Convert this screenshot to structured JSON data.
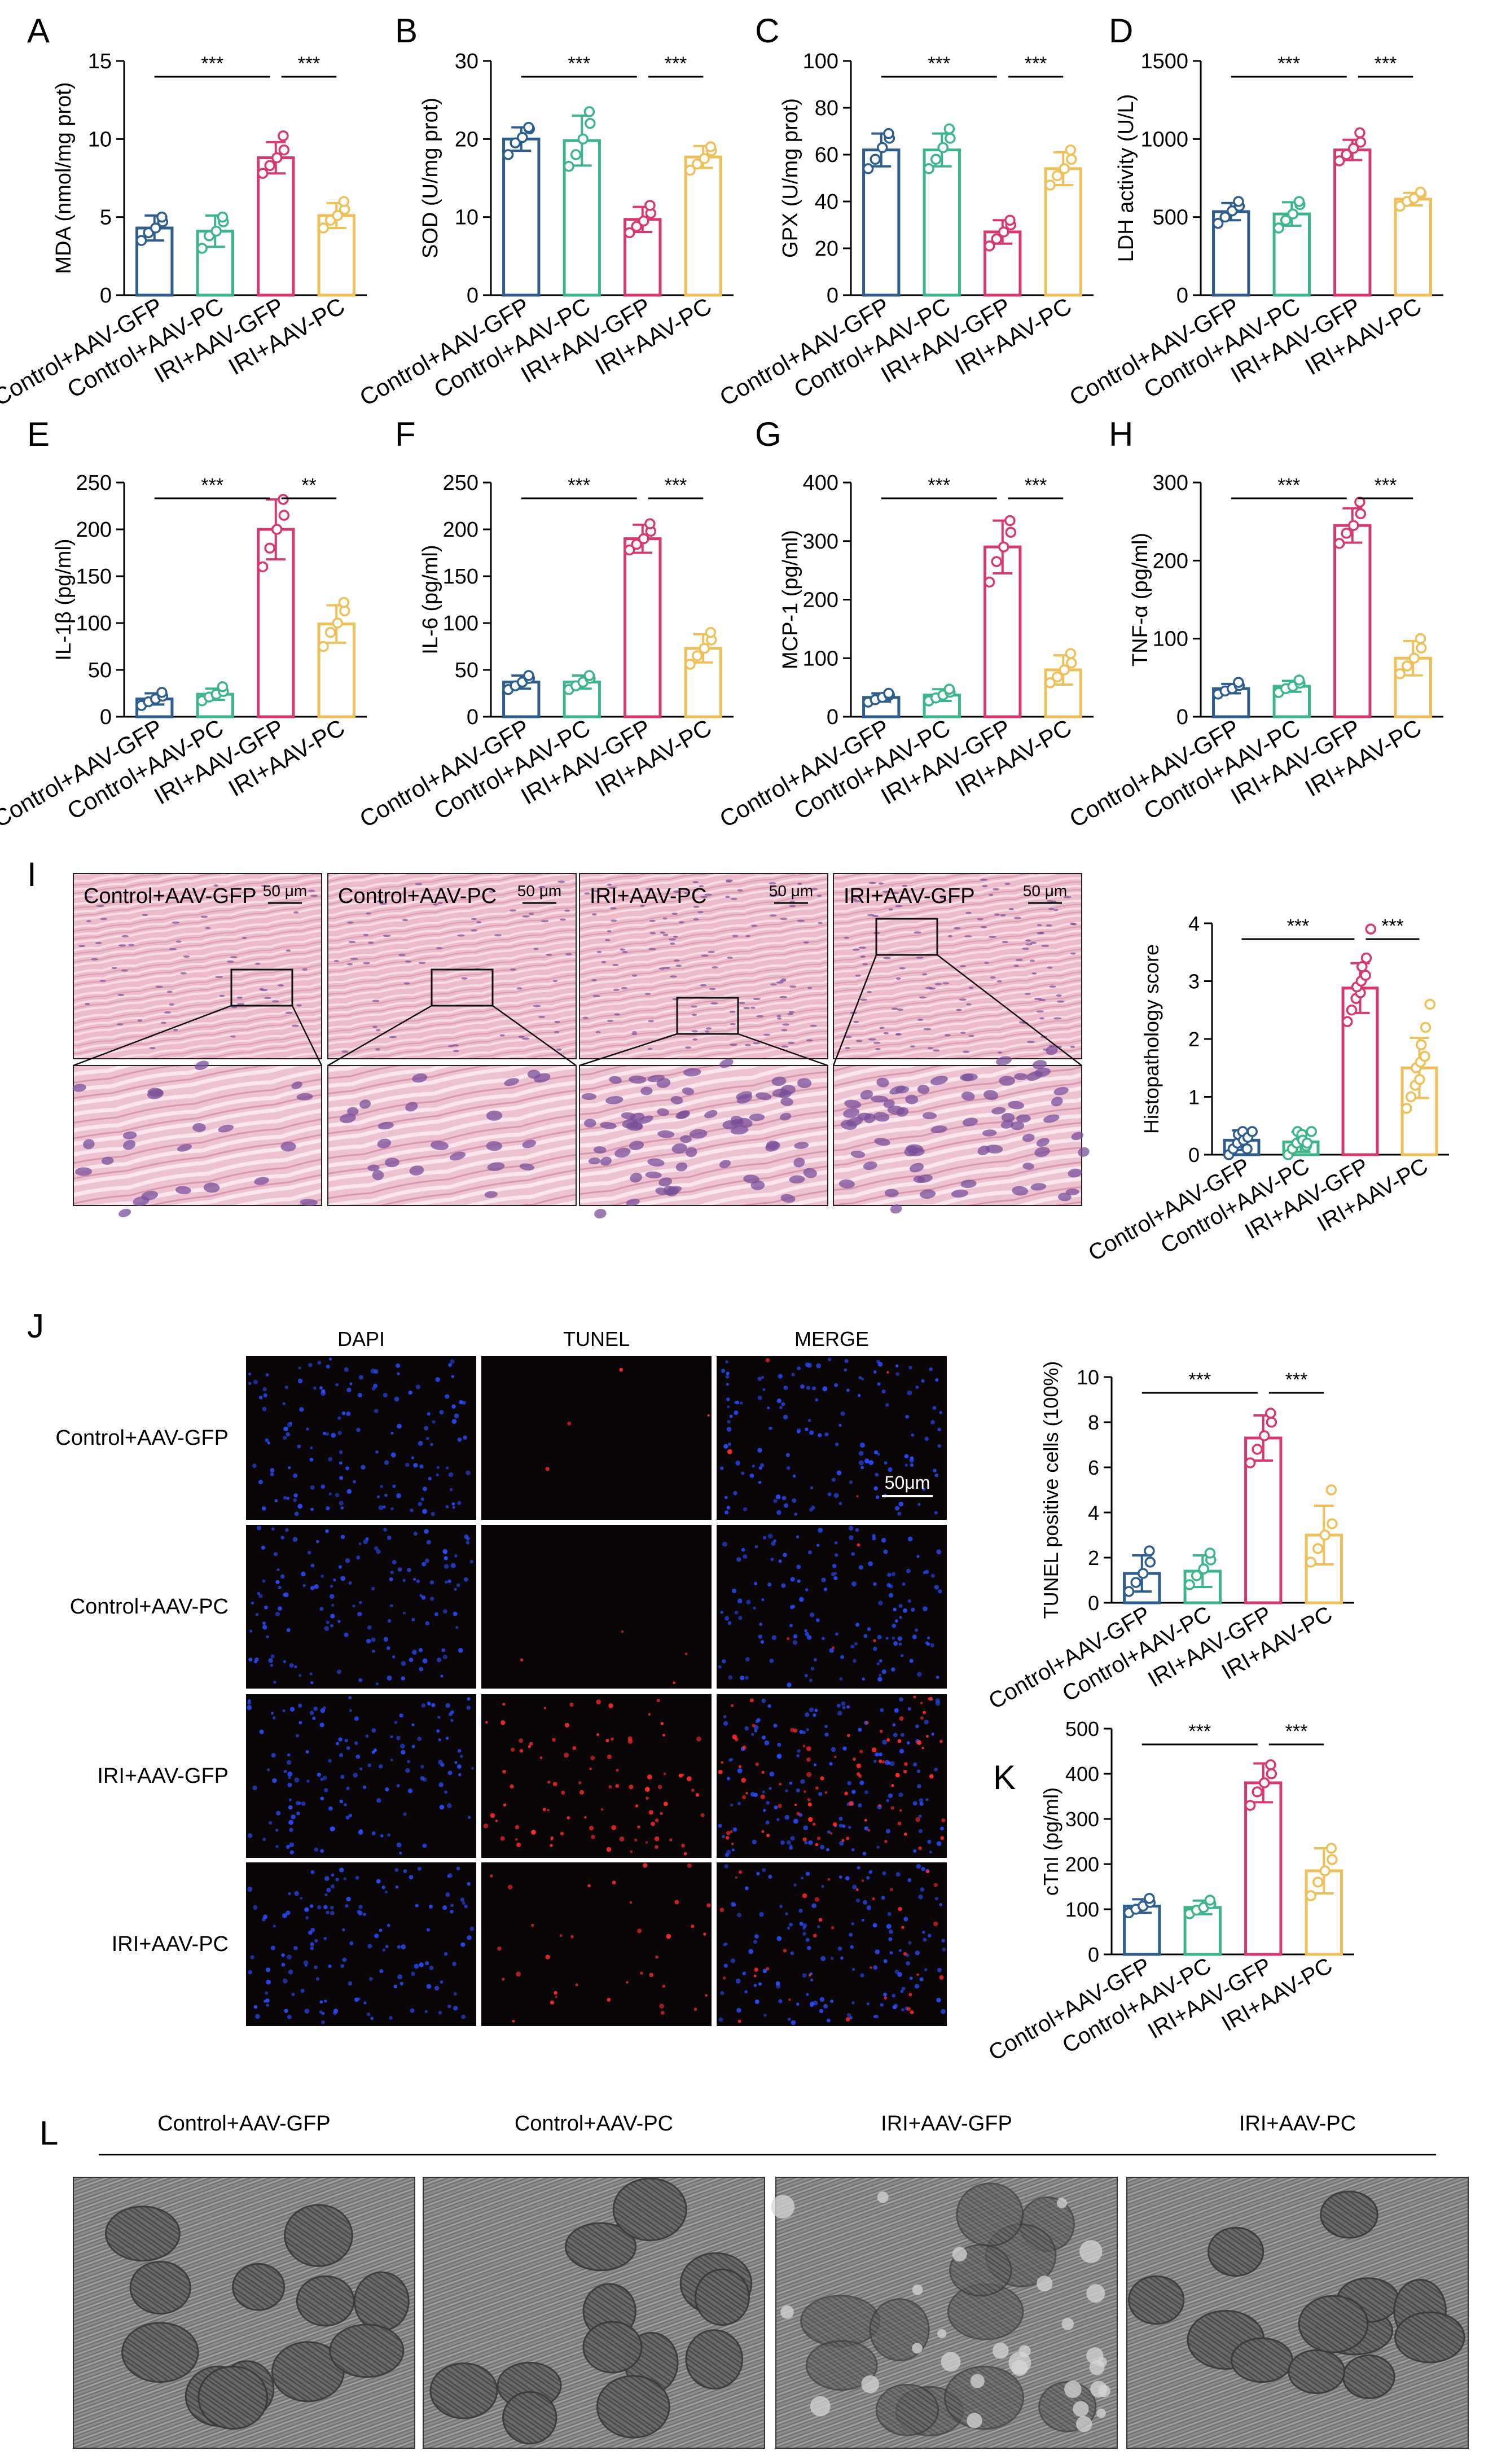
{
  "colors": {
    "Control+AAV-GFP": "#2e5e8e",
    "Control+AAV-PC": "#3cb589",
    "IRI+AAV-GFP": "#d7396d",
    "IRI+AAV-PC": "#efc05a",
    "he_tissue": "#eab8c8",
    "he_nuclei": "#7a4f9a",
    "fluor_bg": "#0a0608",
    "dapi": "#2a4cff",
    "tunel": "#ff2a2a",
    "em_tissue": "#8a8a8a"
  },
  "groups": [
    "Control+AAV-GFP",
    "Control+AAV-PC",
    "IRI+AAV-GFP",
    "IRI+AAV-PC"
  ],
  "chart_data": [
    {
      "id": "A",
      "type": "bar",
      "ylabel": "MDA (nmol/mg prot)",
      "ylim": [
        0,
        15
      ],
      "yticks": [
        0,
        5,
        10,
        15
      ],
      "categories": [
        "Control+AAV-GFP",
        "Control+AAV-PC",
        "IRI+AAV-GFP",
        "IRI+AAV-PC"
      ],
      "values": [
        4.3,
        4.1,
        8.8,
        5.1
      ],
      "errors": [
        0.8,
        1.0,
        1.0,
        0.8
      ],
      "points": [
        [
          3.5,
          4.0,
          4.3,
          4.7,
          5.0
        ],
        [
          3.0,
          3.8,
          4.1,
          4.7,
          5.0
        ],
        [
          7.8,
          8.3,
          8.8,
          9.3,
          10.2
        ],
        [
          4.3,
          4.8,
          5.1,
          5.5,
          6.0
        ]
      ],
      "significance": [
        {
          "from": 0,
          "to": 2,
          "label": "***"
        },
        {
          "from": 2,
          "to": 3,
          "label": "***"
        }
      ]
    },
    {
      "id": "B",
      "type": "bar",
      "ylabel": "SOD (U/mg prot)",
      "ylim": [
        0,
        30
      ],
      "yticks": [
        0,
        10,
        20,
        30
      ],
      "categories": [
        "Control+AAV-GFP",
        "Control+AAV-PC",
        "IRI+AAV-GFP",
        "IRI+AAV-PC"
      ],
      "values": [
        20.0,
        19.8,
        9.7,
        17.7
      ],
      "errors": [
        1.5,
        3.2,
        1.6,
        1.4
      ],
      "points": [
        [
          18.0,
          19.5,
          20.2,
          21.3,
          21.5
        ],
        [
          16.5,
          18.0,
          20.0,
          22.0,
          23.5
        ],
        [
          8.0,
          8.8,
          9.5,
          10.5,
          11.5
        ],
        [
          16.0,
          16.8,
          17.5,
          18.5,
          19.0
        ]
      ],
      "significance": [
        {
          "from": 0,
          "to": 2,
          "label": "***"
        },
        {
          "from": 2,
          "to": 3,
          "label": "***"
        }
      ]
    },
    {
      "id": "C",
      "type": "bar",
      "ylabel": "GPX (U/mg prot)",
      "ylim": [
        0,
        100
      ],
      "yticks": [
        0,
        20,
        40,
        60,
        80,
        100
      ],
      "categories": [
        "Control+AAV-GFP",
        "Control+AAV-PC",
        "IRI+AAV-GFP",
        "IRI+AAV-PC"
      ],
      "values": [
        62,
        62,
        27,
        54
      ],
      "errors": [
        7,
        7,
        5,
        7
      ],
      "points": [
        [
          54,
          58,
          63,
          67,
          69
        ],
        [
          54,
          58,
          63,
          67,
          71
        ],
        [
          21,
          24,
          27,
          30,
          32
        ],
        [
          47,
          51,
          54,
          58,
          62
        ]
      ],
      "significance": [
        {
          "from": 0,
          "to": 2,
          "label": "***"
        },
        {
          "from": 2,
          "to": 3,
          "label": "***"
        }
      ]
    },
    {
      "id": "D",
      "type": "bar",
      "ylabel": "LDH activity (U/L)",
      "ylim": [
        0,
        1500
      ],
      "yticks": [
        0,
        500,
        1000,
        1500
      ],
      "categories": [
        "Control+AAV-GFP",
        "Control+AAV-PC",
        "IRI+AAV-GFP",
        "IRI+AAV-PC"
      ],
      "values": [
        535,
        520,
        930,
        615
      ],
      "errors": [
        55,
        75,
        65,
        40
      ],
      "points": [
        [
          460,
          500,
          540,
          570,
          600
        ],
        [
          430,
          480,
          520,
          580,
          600
        ],
        [
          860,
          900,
          940,
          980,
          1040
        ],
        [
          570,
          600,
          620,
          650,
          660
        ]
      ],
      "significance": [
        {
          "from": 0,
          "to": 2,
          "label": "***"
        },
        {
          "from": 2,
          "to": 3,
          "label": "***"
        }
      ]
    },
    {
      "id": "E",
      "type": "bar",
      "ylabel": "IL-1β (pg/ml)",
      "ylim": [
        0,
        250
      ],
      "yticks": [
        0,
        50,
        100,
        150,
        200,
        250
      ],
      "categories": [
        "Control+AAV-GFP",
        "Control+AAV-PC",
        "IRI+AAV-GFP",
        "IRI+AAV-PC"
      ],
      "values": [
        19,
        24,
        200,
        99
      ],
      "errors": [
        6,
        6,
        32,
        20
      ],
      "points": [
        [
          12,
          16,
          19,
          22,
          26
        ],
        [
          17,
          21,
          24,
          27,
          32
        ],
        [
          160,
          180,
          200,
          215,
          232
        ],
        [
          75,
          90,
          100,
          113,
          122
        ]
      ],
      "significance": [
        {
          "from": 0,
          "to": 2,
          "label": "***"
        },
        {
          "from": 2,
          "to": 3,
          "label": "**"
        }
      ]
    },
    {
      "id": "F",
      "type": "bar",
      "ylabel": "IL-6 (pg/ml)",
      "ylim": [
        0,
        250
      ],
      "yticks": [
        0,
        50,
        100,
        150,
        200,
        250
      ],
      "categories": [
        "Control+AAV-GFP",
        "Control+AAV-PC",
        "IRI+AAV-GFP",
        "IRI+AAV-PC"
      ],
      "values": [
        37,
        37,
        190,
        73
      ],
      "errors": [
        7,
        7,
        15,
        15
      ],
      "points": [
        [
          29,
          33,
          37,
          41,
          44
        ],
        [
          29,
          33,
          37,
          41,
          44
        ],
        [
          178,
          184,
          190,
          198,
          206
        ],
        [
          56,
          65,
          73,
          82,
          90
        ]
      ],
      "significance": [
        {
          "from": 0,
          "to": 2,
          "label": "***"
        },
        {
          "from": 2,
          "to": 3,
          "label": "***"
        }
      ]
    },
    {
      "id": "G",
      "type": "bar",
      "ylabel": "MCP-1 (pg/ml)",
      "ylim": [
        0,
        400
      ],
      "yticks": [
        0,
        100,
        200,
        300,
        400
      ],
      "categories": [
        "Control+AAV-GFP",
        "Control+AAV-PC",
        "IRI+AAV-GFP",
        "IRI+AAV-PC"
      ],
      "values": [
        33,
        37,
        290,
        80
      ],
      "errors": [
        7,
        10,
        45,
        25
      ],
      "points": [
        [
          25,
          29,
          33,
          37,
          40
        ],
        [
          27,
          32,
          37,
          42,
          47
        ],
        [
          230,
          265,
          290,
          315,
          335
        ],
        [
          58,
          68,
          80,
          92,
          108
        ]
      ],
      "significance": [
        {
          "from": 0,
          "to": 2,
          "label": "***"
        },
        {
          "from": 2,
          "to": 3,
          "label": "***"
        }
      ]
    },
    {
      "id": "H",
      "type": "bar",
      "ylabel": "TNF-α (pg/ml)",
      "ylim": [
        0,
        300
      ],
      "yticks": [
        0,
        100,
        200,
        300
      ],
      "categories": [
        "Control+AAV-GFP",
        "Control+AAV-PC",
        "IRI+AAV-GFP",
        "IRI+AAV-PC"
      ],
      "values": [
        36,
        39,
        245,
        75
      ],
      "errors": [
        6,
        7,
        22,
        22
      ],
      "points": [
        [
          29,
          33,
          36,
          40,
          44
        ],
        [
          31,
          36,
          39,
          43,
          47
        ],
        [
          222,
          235,
          245,
          260,
          275
        ],
        [
          55,
          65,
          75,
          88,
          100
        ]
      ],
      "significance": [
        {
          "from": 0,
          "to": 2,
          "label": "***"
        },
        {
          "from": 2,
          "to": 3,
          "label": "***"
        }
      ]
    },
    {
      "id": "I",
      "type": "bar",
      "ylabel": "Histopathology score",
      "ylim": [
        0,
        4
      ],
      "yticks": [
        0,
        1,
        2,
        3,
        4
      ],
      "categories": [
        "Control+AAV-GFP",
        "Control+AAV-PC",
        "IRI+AAV-GFP",
        "IRI+AAV-PC"
      ],
      "values": [
        0.25,
        0.22,
        2.88,
        1.5
      ],
      "errors": [
        0.17,
        0.17,
        0.43,
        0.52
      ],
      "points": [
        [
          0.0,
          0.1,
          0.2,
          0.3,
          0.35,
          0.4,
          0.1,
          0.25,
          0.3,
          0.4
        ],
        [
          0.0,
          0.1,
          0.2,
          0.3,
          0.4,
          0.35,
          0.15,
          0.25,
          0.2,
          0.4
        ],
        [
          2.3,
          2.5,
          2.7,
          2.8,
          2.9,
          3.0,
          3.1,
          3.25,
          3.4,
          3.9
        ],
        [
          0.8,
          1.0,
          1.2,
          1.3,
          1.5,
          1.6,
          1.7,
          1.9,
          2.2,
          2.6
        ]
      ],
      "significance": [
        {
          "from": 0,
          "to": 2,
          "label": "***"
        },
        {
          "from": 2,
          "to": 3,
          "label": "***"
        }
      ]
    },
    {
      "id": "J",
      "type": "bar",
      "ylabel": "TUNEL positive cells (100%)",
      "ylim": [
        0,
        10
      ],
      "yticks": [
        0,
        2,
        4,
        6,
        8,
        10
      ],
      "categories": [
        "Control+AAV-GFP",
        "Control+AAV-PC",
        "IRI+AAV-GFP",
        "IRI+AAV-PC"
      ],
      "values": [
        1.3,
        1.4,
        7.3,
        3.0
      ],
      "errors": [
        0.8,
        0.7,
        1.0,
        1.3
      ],
      "points": [
        [
          0.5,
          0.9,
          1.3,
          1.8,
          2.3
        ],
        [
          0.8,
          1.2,
          1.5,
          1.9,
          2.2
        ],
        [
          6.2,
          6.8,
          7.4,
          8.0,
          8.4
        ],
        [
          1.8,
          2.4,
          3.0,
          3.5,
          5.0
        ]
      ],
      "significance": [
        {
          "from": 0,
          "to": 2,
          "label": "***"
        },
        {
          "from": 2,
          "to": 3,
          "label": "***"
        }
      ]
    },
    {
      "id": "K",
      "type": "bar",
      "ylabel": "cTnI (pg/ml)",
      "ylim": [
        0,
        500
      ],
      "yticks": [
        0,
        100,
        200,
        300,
        400,
        500
      ],
      "categories": [
        "Control+AAV-GFP",
        "Control+AAV-PC",
        "IRI+AAV-GFP",
        "IRI+AAV-PC"
      ],
      "values": [
        107,
        104,
        380,
        185
      ],
      "errors": [
        15,
        15,
        43,
        50
      ],
      "points": [
        [
          92,
          100,
          107,
          115,
          124
        ],
        [
          90,
          98,
          104,
          112,
          120
        ],
        [
          330,
          360,
          380,
          400,
          420
        ],
        [
          130,
          160,
          185,
          210,
          235
        ]
      ],
      "significance": [
        {
          "from": 0,
          "to": 2,
          "label": "***"
        },
        {
          "from": 2,
          "to": 3,
          "label": "***"
        }
      ]
    }
  ],
  "letters": {
    "A": "A",
    "B": "B",
    "C": "C",
    "D": "D",
    "E": "E",
    "F": "F",
    "G": "G",
    "H": "H",
    "I": "I",
    "J": "J",
    "K": "K",
    "L": "L"
  },
  "he_panel": {
    "labels": [
      "Control+AAV-GFP",
      "Control+AAV-PC",
      "IRI+AAV-PC",
      "IRI+AAV-GFP"
    ],
    "scalebar": "50 μm"
  },
  "tunel_panel": {
    "columns": [
      "DAPI",
      "TUNEL",
      "MERGE"
    ],
    "rows": [
      "Control+AAV-GFP",
      "Control+AAV-PC",
      "IRI+AAV-GFP",
      "IRI+AAV-PC"
    ],
    "scalebar": "50μm"
  },
  "em_panel": {
    "labels": [
      "Control+AAV-GFP",
      "Control+AAV-PC",
      "IRI+AAV-GFP",
      "IRI+AAV-PC"
    ]
  }
}
